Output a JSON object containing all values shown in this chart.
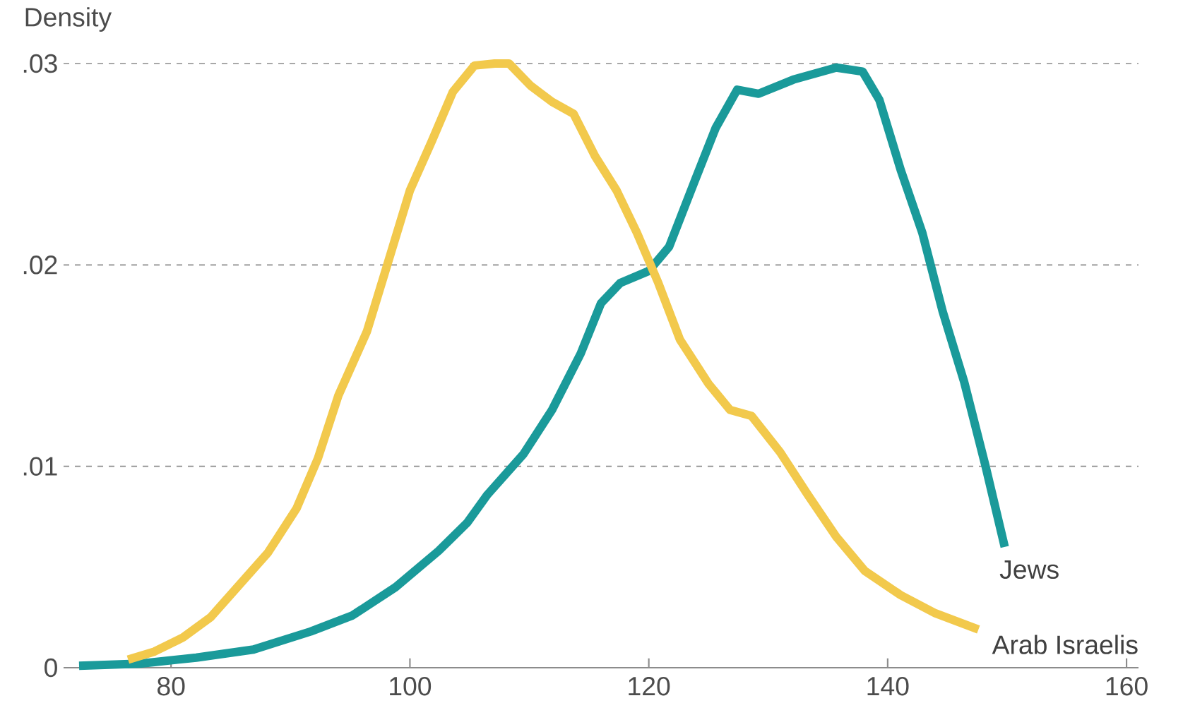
{
  "chart_data": {
    "type": "line",
    "ylabel": "Density",
    "legend": false,
    "grid": "y",
    "marker": "none",
    "line_style": "solid",
    "xlim": [
      71,
      161
    ],
    "ylim": [
      0,
      0.03
    ],
    "xticks": [
      80,
      100,
      120,
      140,
      160
    ],
    "yticks": [
      {
        "value": 0,
        "label": "0"
      },
      {
        "value": 0.01,
        "label": ".01"
      },
      {
        "value": 0.02,
        "label": ".02"
      },
      {
        "value": 0.03,
        "label": ".03"
      }
    ],
    "series": [
      {
        "name": "Jews",
        "color": "#1a9a9a",
        "x": [
          72.3,
          77.4,
          82.1,
          86.9,
          91.7,
          95.2,
          98.8,
          102.4,
          104.8,
          106.5,
          109.5,
          111.9,
          114.3,
          116,
          117.6,
          120,
          121.7,
          123.8,
          125.6,
          127.4,
          129.2,
          132.1,
          135.7,
          137.9,
          139.3,
          141.1,
          142.9,
          144.6,
          146.4,
          148.2,
          149.8
        ],
        "values": [
          0.0001,
          0.0002,
          0.0005,
          0.0009,
          0.0018,
          0.0026,
          0.004,
          0.0058,
          0.0072,
          0.0086,
          0.0106,
          0.0128,
          0.0156,
          0.0181,
          0.0191,
          0.0197,
          0.0209,
          0.0241,
          0.0268,
          0.0287,
          0.0285,
          0.0292,
          0.0298,
          0.0296,
          0.0282,
          0.0247,
          0.0216,
          0.0177,
          0.0142,
          0.01,
          0.006
        ]
      },
      {
        "name": "Arab Israelis",
        "color": "#f2c94c",
        "x": [
          76.4,
          78.6,
          81,
          83.3,
          85.7,
          88.1,
          90.5,
          92.3,
          94,
          96.4,
          98.2,
          100,
          101.8,
          103.6,
          105.4,
          107.1,
          108.3,
          110.1,
          111.9,
          113.7,
          115.5,
          117.3,
          119,
          120.8,
          122.6,
          125,
          126.8,
          128.6,
          131,
          133.3,
          135.7,
          138.1,
          141.1,
          144,
          147.6
        ],
        "values": [
          0.0004,
          0.0008,
          0.0015,
          0.0025,
          0.0041,
          0.0057,
          0.0079,
          0.0104,
          0.0135,
          0.0167,
          0.0202,
          0.0237,
          0.0261,
          0.0286,
          0.0299,
          0.03,
          0.03,
          0.0289,
          0.0281,
          0.0275,
          0.0254,
          0.0237,
          0.0216,
          0.0191,
          0.0163,
          0.0141,
          0.0128,
          0.0125,
          0.0107,
          0.0086,
          0.0065,
          0.0048,
          0.0036,
          0.0027,
          0.0019
        ]
      }
    ]
  }
}
